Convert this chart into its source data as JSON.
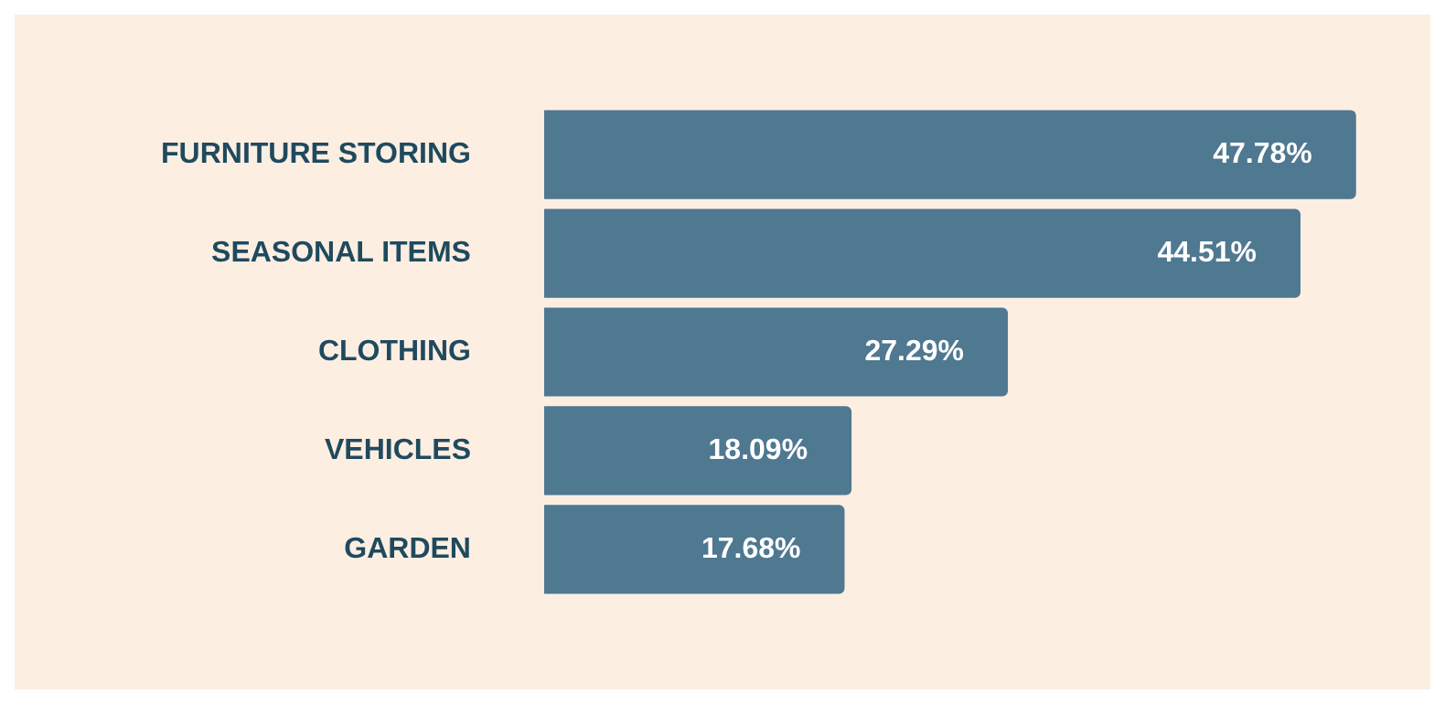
{
  "chart_data": {
    "type": "bar",
    "orientation": "horizontal",
    "categories": [
      "FURNITURE STORING",
      "SEASONAL ITEMS",
      "CLOTHING",
      "VEHICLES",
      "GARDEN"
    ],
    "values": [
      47.78,
      44.51,
      27.29,
      18.09,
      17.68
    ],
    "value_labels": [
      "47.78%",
      "44.51%",
      "27.29%",
      "18.09%",
      "17.68%"
    ],
    "color": "#4f7891"
  }
}
